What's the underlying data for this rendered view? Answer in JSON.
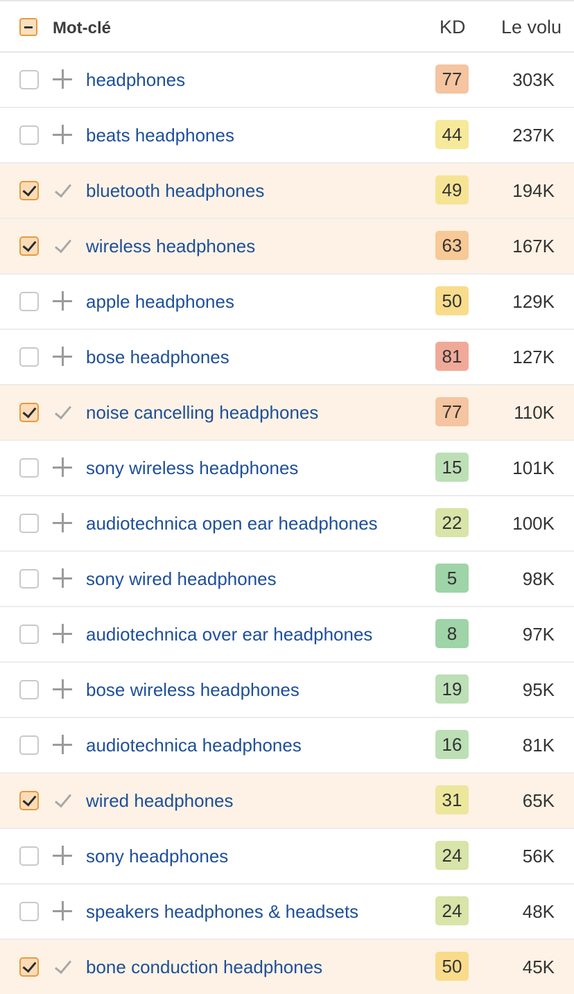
{
  "header": {
    "keyword_label": "Mot-clé",
    "kd_label": "KD",
    "volume_label": "Le volu"
  },
  "rows": [
    {
      "keyword": "headphones",
      "kd": "77",
      "volume": "303K",
      "selected": false,
      "kd_color": "#f5c4a0"
    },
    {
      "keyword": "beats headphones",
      "kd": "44",
      "volume": "237K",
      "selected": false,
      "kd_color": "#f6e99a"
    },
    {
      "keyword": "bluetooth headphones",
      "kd": "49",
      "volume": "194K",
      "selected": true,
      "kd_color": "#f6e494"
    },
    {
      "keyword": "wireless headphones",
      "kd": "63",
      "volume": "167K",
      "selected": true,
      "kd_color": "#f7c996"
    },
    {
      "keyword": "apple headphones",
      "kd": "50",
      "volume": "129K",
      "selected": false,
      "kd_color": "#f8dc8c"
    },
    {
      "keyword": "bose headphones",
      "kd": "81",
      "volume": "127K",
      "selected": false,
      "kd_color": "#f0a999"
    },
    {
      "keyword": "noise cancelling headphones",
      "kd": "77",
      "volume": "110K",
      "selected": true,
      "kd_color": "#f5c4a0"
    },
    {
      "keyword": "sony wireless headphones",
      "kd": "15",
      "volume": "101K",
      "selected": false,
      "kd_color": "#bcdfb6"
    },
    {
      "keyword": "audiotechnica open ear headphones",
      "kd": "22",
      "volume": "100K",
      "selected": false,
      "kd_color": "#d8e4a8"
    },
    {
      "keyword": "sony wired headphones",
      "kd": "5",
      "volume": "98K",
      "selected": false,
      "kd_color": "#9fd3a8"
    },
    {
      "keyword": "audiotechnica over ear headphones",
      "kd": "8",
      "volume": "97K",
      "selected": false,
      "kd_color": "#9fd3a8"
    },
    {
      "keyword": "bose wireless headphones",
      "kd": "19",
      "volume": "95K",
      "selected": false,
      "kd_color": "#bcdfb6"
    },
    {
      "keyword": "audiotechnica headphones",
      "kd": "16",
      "volume": "81K",
      "selected": false,
      "kd_color": "#bcdfb6"
    },
    {
      "keyword": "wired headphones",
      "kd": "31",
      "volume": "65K",
      "selected": true,
      "kd_color": "#ece79c"
    },
    {
      "keyword": "sony headphones",
      "kd": "24",
      "volume": "56K",
      "selected": false,
      "kd_color": "#d8e4a8"
    },
    {
      "keyword": "speakers headphones & headsets",
      "kd": "24",
      "volume": "48K",
      "selected": false,
      "kd_color": "#d8e4a8"
    },
    {
      "keyword": "bone conduction headphones",
      "kd": "50",
      "volume": "45K",
      "selected": true,
      "kd_color": "#f8dc8c"
    }
  ]
}
